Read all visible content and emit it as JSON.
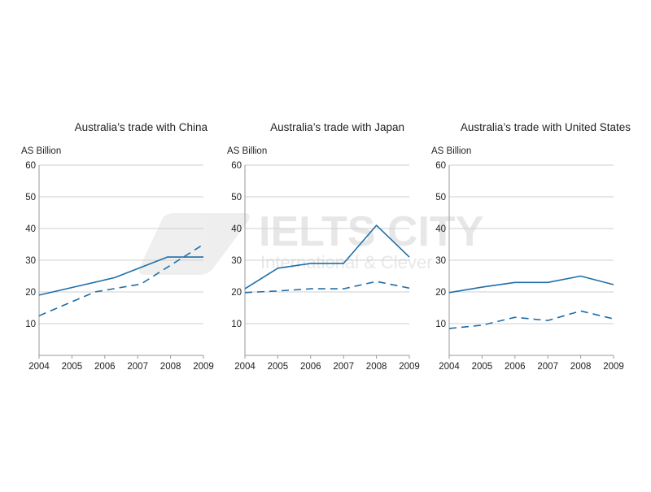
{
  "watermark": {
    "brand": "IELTS CITY",
    "tagline": "International & Clever"
  },
  "colors": {
    "line": "#1f6fa8",
    "grid": "#cfcfcf",
    "axis": "#999999",
    "text": "#222222"
  },
  "chart_data": [
    {
      "type": "line",
      "title": "Australia’s trade with China",
      "ylabel": "AS Billion",
      "xlabel": "",
      "ylim": [
        0,
        60
      ],
      "yticks": [
        10,
        20,
        30,
        40,
        50,
        60
      ],
      "xlim": [
        2004,
        2009
      ],
      "xticks": [
        2004,
        2005,
        2006,
        2007,
        2008,
        2009
      ],
      "grid": true,
      "series": [
        {
          "style": "solid",
          "x": [
            2004,
            2006.3,
            2007.9,
            2009
          ],
          "y": [
            19,
            24.5,
            31,
            31
          ]
        },
        {
          "style": "dashed",
          "x": [
            2004,
            2005.7,
            2007.1,
            2009
          ],
          "y": [
            12.5,
            20,
            22.5,
            35
          ]
        }
      ]
    },
    {
      "type": "line",
      "title": "Australia’s trade with Japan",
      "ylabel": "AS Billion",
      "xlabel": "",
      "ylim": [
        0,
        60
      ],
      "yticks": [
        10,
        20,
        30,
        40,
        50,
        60
      ],
      "xlim": [
        2004,
        2009
      ],
      "xticks": [
        2004,
        2005,
        2006,
        2007,
        2008,
        2009
      ],
      "grid": true,
      "series": [
        {
          "style": "solid",
          "x": [
            2004,
            2005,
            2006,
            2007,
            2008,
            2009
          ],
          "y": [
            21,
            27.5,
            29,
            29,
            41,
            31
          ]
        },
        {
          "style": "dashed",
          "x": [
            2004,
            2005,
            2006,
            2007,
            2008,
            2009
          ],
          "y": [
            19.8,
            20.3,
            21,
            21,
            23.3,
            21.2
          ]
        }
      ]
    },
    {
      "type": "line",
      "title": "Australia’s trade with United States",
      "ylabel": "AS Billion",
      "xlabel": "",
      "ylim": [
        0,
        60
      ],
      "yticks": [
        10,
        20,
        30,
        40,
        50,
        60
      ],
      "xlim": [
        2004,
        2009
      ],
      "xticks": [
        2004,
        2005,
        2006,
        2007,
        2008,
        2009
      ],
      "grid": true,
      "series": [
        {
          "style": "solid",
          "x": [
            2004,
            2005,
            2006,
            2007,
            2008,
            2009
          ],
          "y": [
            19.8,
            21.5,
            23,
            23,
            25,
            22.3
          ]
        },
        {
          "style": "dashed",
          "x": [
            2004,
            2005,
            2006,
            2007,
            2008,
            2009
          ],
          "y": [
            8.5,
            9.5,
            12,
            11,
            14,
            11.5
          ]
        }
      ]
    }
  ]
}
